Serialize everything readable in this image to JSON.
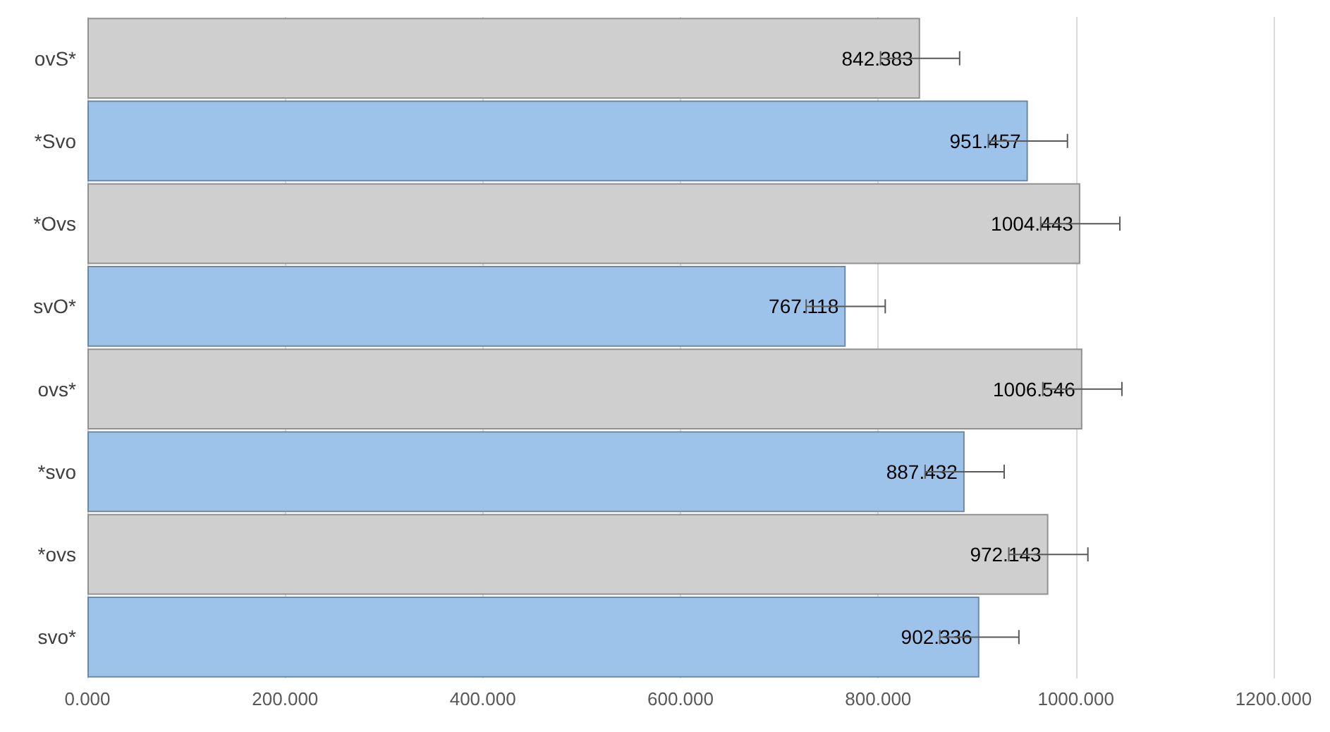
{
  "chart_data": {
    "type": "bar",
    "orientation": "horizontal",
    "categories": [
      "ovS*",
      "*Svo",
      "*Ovs",
      "svO*",
      "ovs*",
      "*svo",
      "*ovs",
      "svo*"
    ],
    "values": [
      842.383,
      951.457,
      1004.443,
      767.118,
      1006.546,
      887.432,
      972.143,
      902.336
    ],
    "colors": [
      "#cfcfcf",
      "#9ec3ea",
      "#cfcfcf",
      "#9ec3ea",
      "#cfcfcf",
      "#9ec3ea",
      "#cfcfcf",
      "#9ec3ea"
    ],
    "errors": [
      40,
      40,
      40,
      40,
      40,
      40,
      40,
      40
    ],
    "data_labels": true,
    "xlim": [
      0,
      1200
    ],
    "xticks": [
      {
        "value": 0,
        "label": "0.000"
      },
      {
        "value": 200,
        "label": "200.000"
      },
      {
        "value": 400,
        "label": "400.000"
      },
      {
        "value": 600,
        "label": "600.000"
      },
      {
        "value": 800,
        "label": "800.000"
      },
      {
        "value": 1000,
        "label": "1000.000"
      },
      {
        "value": 1200,
        "label": "1200.000"
      }
    ],
    "grid": "x"
  }
}
